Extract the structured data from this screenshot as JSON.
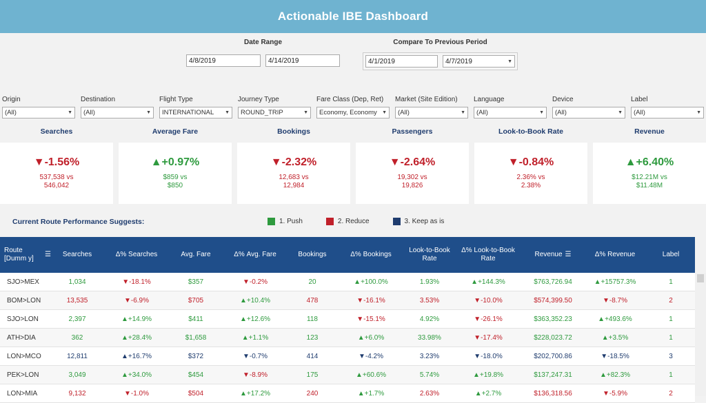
{
  "header": {
    "title": "Actionable IBE Dashboard"
  },
  "date_range": {
    "label": "Date Range",
    "start": "4/8/2019",
    "end": "4/14/2019"
  },
  "compare": {
    "label": "Compare To Previous Period",
    "start": "4/1/2019",
    "end": "4/7/2019"
  },
  "filters": [
    {
      "label": "Origin",
      "value": "(All)"
    },
    {
      "label": "Destination",
      "value": "(All)"
    },
    {
      "label": "Flight Type",
      "value": "INTERNATIONAL"
    },
    {
      "label": "Journey Type",
      "value": "ROUND_TRIP"
    },
    {
      "label": "Fare Class (Dep, Ret)",
      "value": "Economy, Economy"
    },
    {
      "label": "Market (Site Edition)",
      "value": "(All)"
    },
    {
      "label": "Language",
      "value": "(All)"
    },
    {
      "label": "Device",
      "value": "(All)"
    },
    {
      "label": "Label",
      "value": "(All)"
    }
  ],
  "kpis": [
    {
      "title": "Searches",
      "pct": "▼-1.56%",
      "sub1": "537,538 vs",
      "sub2": "546,042",
      "color": "red"
    },
    {
      "title": "Average Fare",
      "pct": "▲+0.97%",
      "sub1": "$859 vs",
      "sub2": "$850",
      "color": "green"
    },
    {
      "title": "Bookings",
      "pct": "▼-2.32%",
      "sub1": "12,683 vs",
      "sub2": "12,984",
      "color": "red"
    },
    {
      "title": "Passengers",
      "pct": "▼-2.64%",
      "sub1": "19,302  vs",
      "sub2": "19,826",
      "color": "red"
    },
    {
      "title": "Look-to-Book Rate",
      "pct": "▼-0.84%",
      "sub1": "2.36% vs",
      "sub2": "2.38%",
      "color": "red"
    },
    {
      "title": "Revenue",
      "pct": "▲+6.40%",
      "sub1": "$12.21M vs",
      "sub2": "$11.48M",
      "color": "green"
    }
  ],
  "suggest_label": "Current Route Performance Suggests:",
  "legend": [
    {
      "label": "1. Push",
      "color": "#2e9a3e"
    },
    {
      "label": "2. Reduce",
      "color": "#c0202a"
    },
    {
      "label": "3. Keep as is",
      "color": "#1f3c6e"
    }
  ],
  "table": {
    "headers": [
      "Route [Dumm y]",
      "Searches",
      "Δ% Searches",
      "Avg. Fare",
      "Δ%  Avg. Fare",
      "Bookings",
      "Δ% Bookings",
      "Look-to-Book Rate",
      "Δ% Look-to-Book Rate",
      "Revenue",
      "Δ% Revenue",
      "Label"
    ],
    "rows": [
      {
        "route": "SJO>MEX",
        "color": "green",
        "cells": [
          "1,034",
          "▼-18.1%",
          "$357",
          "▼-0.2%",
          "20",
          "▲+100.0%",
          "1.93%",
          "▲+144.3%",
          "$763,726.94",
          "▲+15757.3%",
          "1"
        ]
      },
      {
        "route": "BOM>LON",
        "color": "red",
        "cells": [
          "13,535",
          "▼-6.9%",
          "$705",
          "▲+10.4%",
          "478",
          "▼-16.1%",
          "3.53%",
          "▼-10.0%",
          "$574,399.50",
          "▼-8.7%",
          "2"
        ]
      },
      {
        "route": "SJO>LON",
        "color": "green",
        "cells": [
          "2,397",
          "▲+14.9%",
          "$411",
          "▲+12.6%",
          "118",
          "▼-15.1%",
          "4.92%",
          "▼-26.1%",
          "$363,352.23",
          "▲+493.6%",
          "1"
        ]
      },
      {
        "route": "ATH>DIA",
        "color": "green",
        "cells": [
          "362",
          "▲+28.4%",
          "$1,658",
          "▲+1.1%",
          "123",
          "▲+6.0%",
          "33.98%",
          "▼-17.4%",
          "$228,023.72",
          "▲+3.5%",
          "1"
        ]
      },
      {
        "route": "LON>MCO",
        "color": "blue",
        "cells": [
          "12,811",
          "▲+16.7%",
          "$372",
          "▼-0.7%",
          "414",
          "▼-4.2%",
          "3.23%",
          "▼-18.0%",
          "$202,700.86",
          "▼-18.5%",
          "3"
        ]
      },
      {
        "route": "PEK>LON",
        "color": "green",
        "cells": [
          "3,049",
          "▲+34.0%",
          "$454",
          "▼-8.9%",
          "175",
          "▲+60.6%",
          "5.74%",
          "▲+19.8%",
          "$137,247.31",
          "▲+82.3%",
          "1"
        ]
      },
      {
        "route": "LON>MIA",
        "color": "red",
        "cells": [
          "9,132",
          "▼-1.0%",
          "$504",
          "▲+17.2%",
          "240",
          "▲+1.7%",
          "2.63%",
          "▲+2.7%",
          "$136,318.56",
          "▼-5.9%",
          "2"
        ]
      }
    ]
  }
}
